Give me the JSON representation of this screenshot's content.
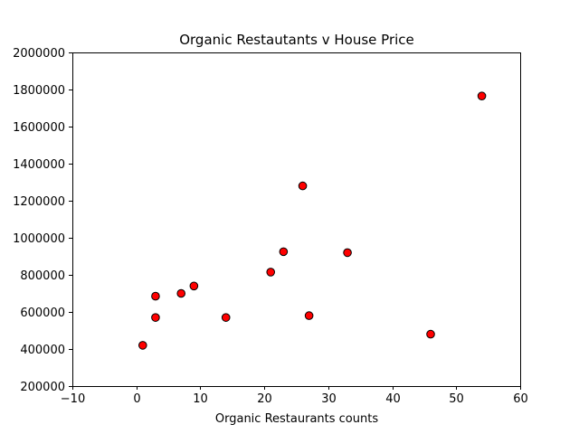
{
  "chart_data": {
    "type": "scatter",
    "title": "Organic Restautants v House Price",
    "xlabel": "Organic Restaurants counts",
    "ylabel": "",
    "xlim": [
      -10,
      60
    ],
    "ylim": [
      200000,
      2000000
    ],
    "x_ticks": [
      -10,
      0,
      10,
      20,
      30,
      40,
      50,
      60
    ],
    "y_ticks": [
      200000,
      400000,
      600000,
      800000,
      1000000,
      1200000,
      1400000,
      1600000,
      1800000,
      2000000
    ],
    "x_tick_labels": [
      "−10",
      "0",
      "10",
      "20",
      "30",
      "40",
      "50",
      "60"
    ],
    "y_tick_labels": [
      "200000",
      "400000",
      "600000",
      "800000",
      "1000000",
      "1200000",
      "1400000",
      "1600000",
      "1800000",
      "2000000"
    ],
    "grid": false,
    "marker_fill": "#ff0000",
    "marker_edge": "#000000",
    "points": [
      {
        "x": 1,
        "y": 420000
      },
      {
        "x": 3,
        "y": 570000
      },
      {
        "x": 3,
        "y": 685000
      },
      {
        "x": 7,
        "y": 700000
      },
      {
        "x": 9,
        "y": 740000
      },
      {
        "x": 14,
        "y": 570000
      },
      {
        "x": 21,
        "y": 815000
      },
      {
        "x": 23,
        "y": 925000
      },
      {
        "x": 26,
        "y": 1280000
      },
      {
        "x": 27,
        "y": 580000
      },
      {
        "x": 33,
        "y": 920000
      },
      {
        "x": 46,
        "y": 480000
      },
      {
        "x": 54,
        "y": 1765000
      }
    ]
  }
}
